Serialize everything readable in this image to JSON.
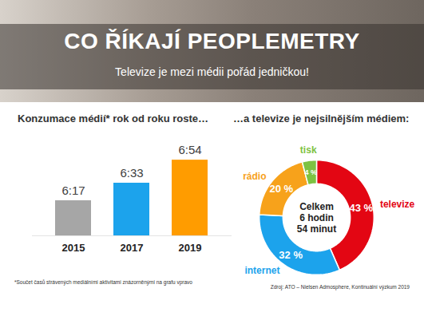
{
  "header": {
    "title": "CO ŘÍKAJÍ PEOPLEMETRY",
    "subtitle": "Televize je mezi médii pořád jedničkou!"
  },
  "chart_data": [
    {
      "type": "bar",
      "title": "Konzumace médií* rok od roku roste…",
      "categories": [
        "2015",
        "2017",
        "2019"
      ],
      "values": [
        377,
        393,
        414
      ],
      "value_labels": [
        "6:17",
        "6:33",
        "6:54"
      ],
      "colors": [
        "#a6a6a6",
        "#1ca3ec",
        "#ff9c00"
      ],
      "ylim": [
        345,
        425
      ],
      "data_labels": true,
      "tick_labels": "x"
    },
    {
      "type": "pie",
      "title": "…a televize je nejsilnějším médiem:",
      "categories": [
        "televize",
        "internet",
        "rádio",
        "tisk"
      ],
      "values": [
        43,
        32,
        20,
        4
      ],
      "value_labels": [
        "43 %",
        "32 %",
        "20 %",
        "4 %"
      ],
      "colors": [
        "#e30613",
        "#1ca3ec",
        "#f7a21b",
        "#7dc242"
      ],
      "annotations": [
        "Celkem",
        "6 hodin",
        "54 minut"
      ],
      "data_labels": true
    }
  ],
  "footnote": "*Součet časů strávených mediálními aktivitami znázorněnými na grafu vpravo",
  "source": "Zdroj: ATO – Nielsen Admosphere, Kontinuální výzkum 2019"
}
